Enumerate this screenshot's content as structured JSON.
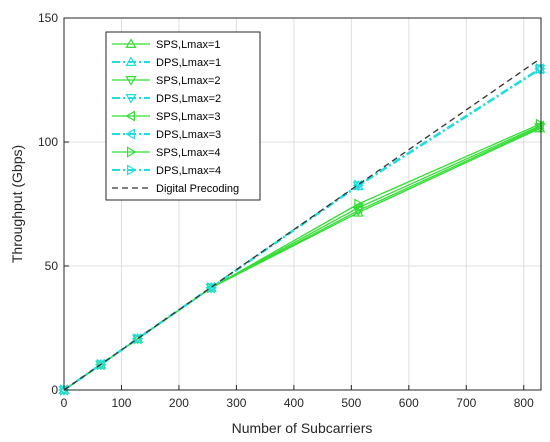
{
  "chart_data": {
    "type": "line",
    "xlabel": "Number of Subcarriers",
    "ylabel": "Throughput (Gbps)",
    "xlim": [
      0,
      830
    ],
    "ylim": [
      0,
      150
    ],
    "xticks": [
      0,
      100,
      200,
      300,
      400,
      500,
      600,
      700,
      800
    ],
    "yticks": [
      0,
      50,
      100,
      150
    ],
    "grid": true,
    "legend_position": "top-left",
    "x": [
      0,
      64,
      128,
      256,
      512,
      828
    ],
    "series": [
      {
        "name": "SPS,Lmax=1",
        "values": [
          0,
          10.2,
          20.6,
          41.2,
          71.5,
          105.5
        ],
        "color": "#33dd33",
        "dash": "solid",
        "marker": "triangle-up"
      },
      {
        "name": "DPS,Lmax=1",
        "values": [
          0,
          10.3,
          20.7,
          41.3,
          82.3,
          129.3
        ],
        "color": "#22dddd",
        "dash": "dashdot",
        "marker": "triangle-up"
      },
      {
        "name": "SPS,Lmax=2",
        "values": [
          0,
          10.2,
          20.6,
          41.2,
          72.3,
          106.0
        ],
        "color": "#33dd33",
        "dash": "solid",
        "marker": "triangle-down"
      },
      {
        "name": "DPS,Lmax=2",
        "values": [
          0,
          10.3,
          20.7,
          41.3,
          82.4,
          129.4
        ],
        "color": "#22dddd",
        "dash": "dashdot",
        "marker": "triangle-down"
      },
      {
        "name": "SPS,Lmax=3",
        "values": [
          0,
          10.2,
          20.6,
          41.2,
          73.5,
          106.5
        ],
        "color": "#33dd33",
        "dash": "solid",
        "marker": "triangle-left"
      },
      {
        "name": "DPS,Lmax=3",
        "values": [
          0,
          10.3,
          20.7,
          41.3,
          82.5,
          129.5
        ],
        "color": "#22dddd",
        "dash": "dashdot",
        "marker": "triangle-left"
      },
      {
        "name": "SPS,Lmax=4",
        "values": [
          0,
          10.2,
          20.6,
          41.2,
          75.0,
          107.2
        ],
        "color": "#33dd33",
        "dash": "solid",
        "marker": "triangle-right"
      },
      {
        "name": "DPS,Lmax=4",
        "values": [
          0,
          10.3,
          20.7,
          41.3,
          82.6,
          129.6
        ],
        "color": "#22dddd",
        "dash": "dashdot",
        "marker": "triangle-right"
      },
      {
        "name": "Digital Precoding",
        "values": [
          0,
          10.3,
          20.7,
          41.4,
          82.8,
          133.5
        ],
        "color": "#333333",
        "dash": "dashed",
        "marker": "none"
      }
    ]
  }
}
